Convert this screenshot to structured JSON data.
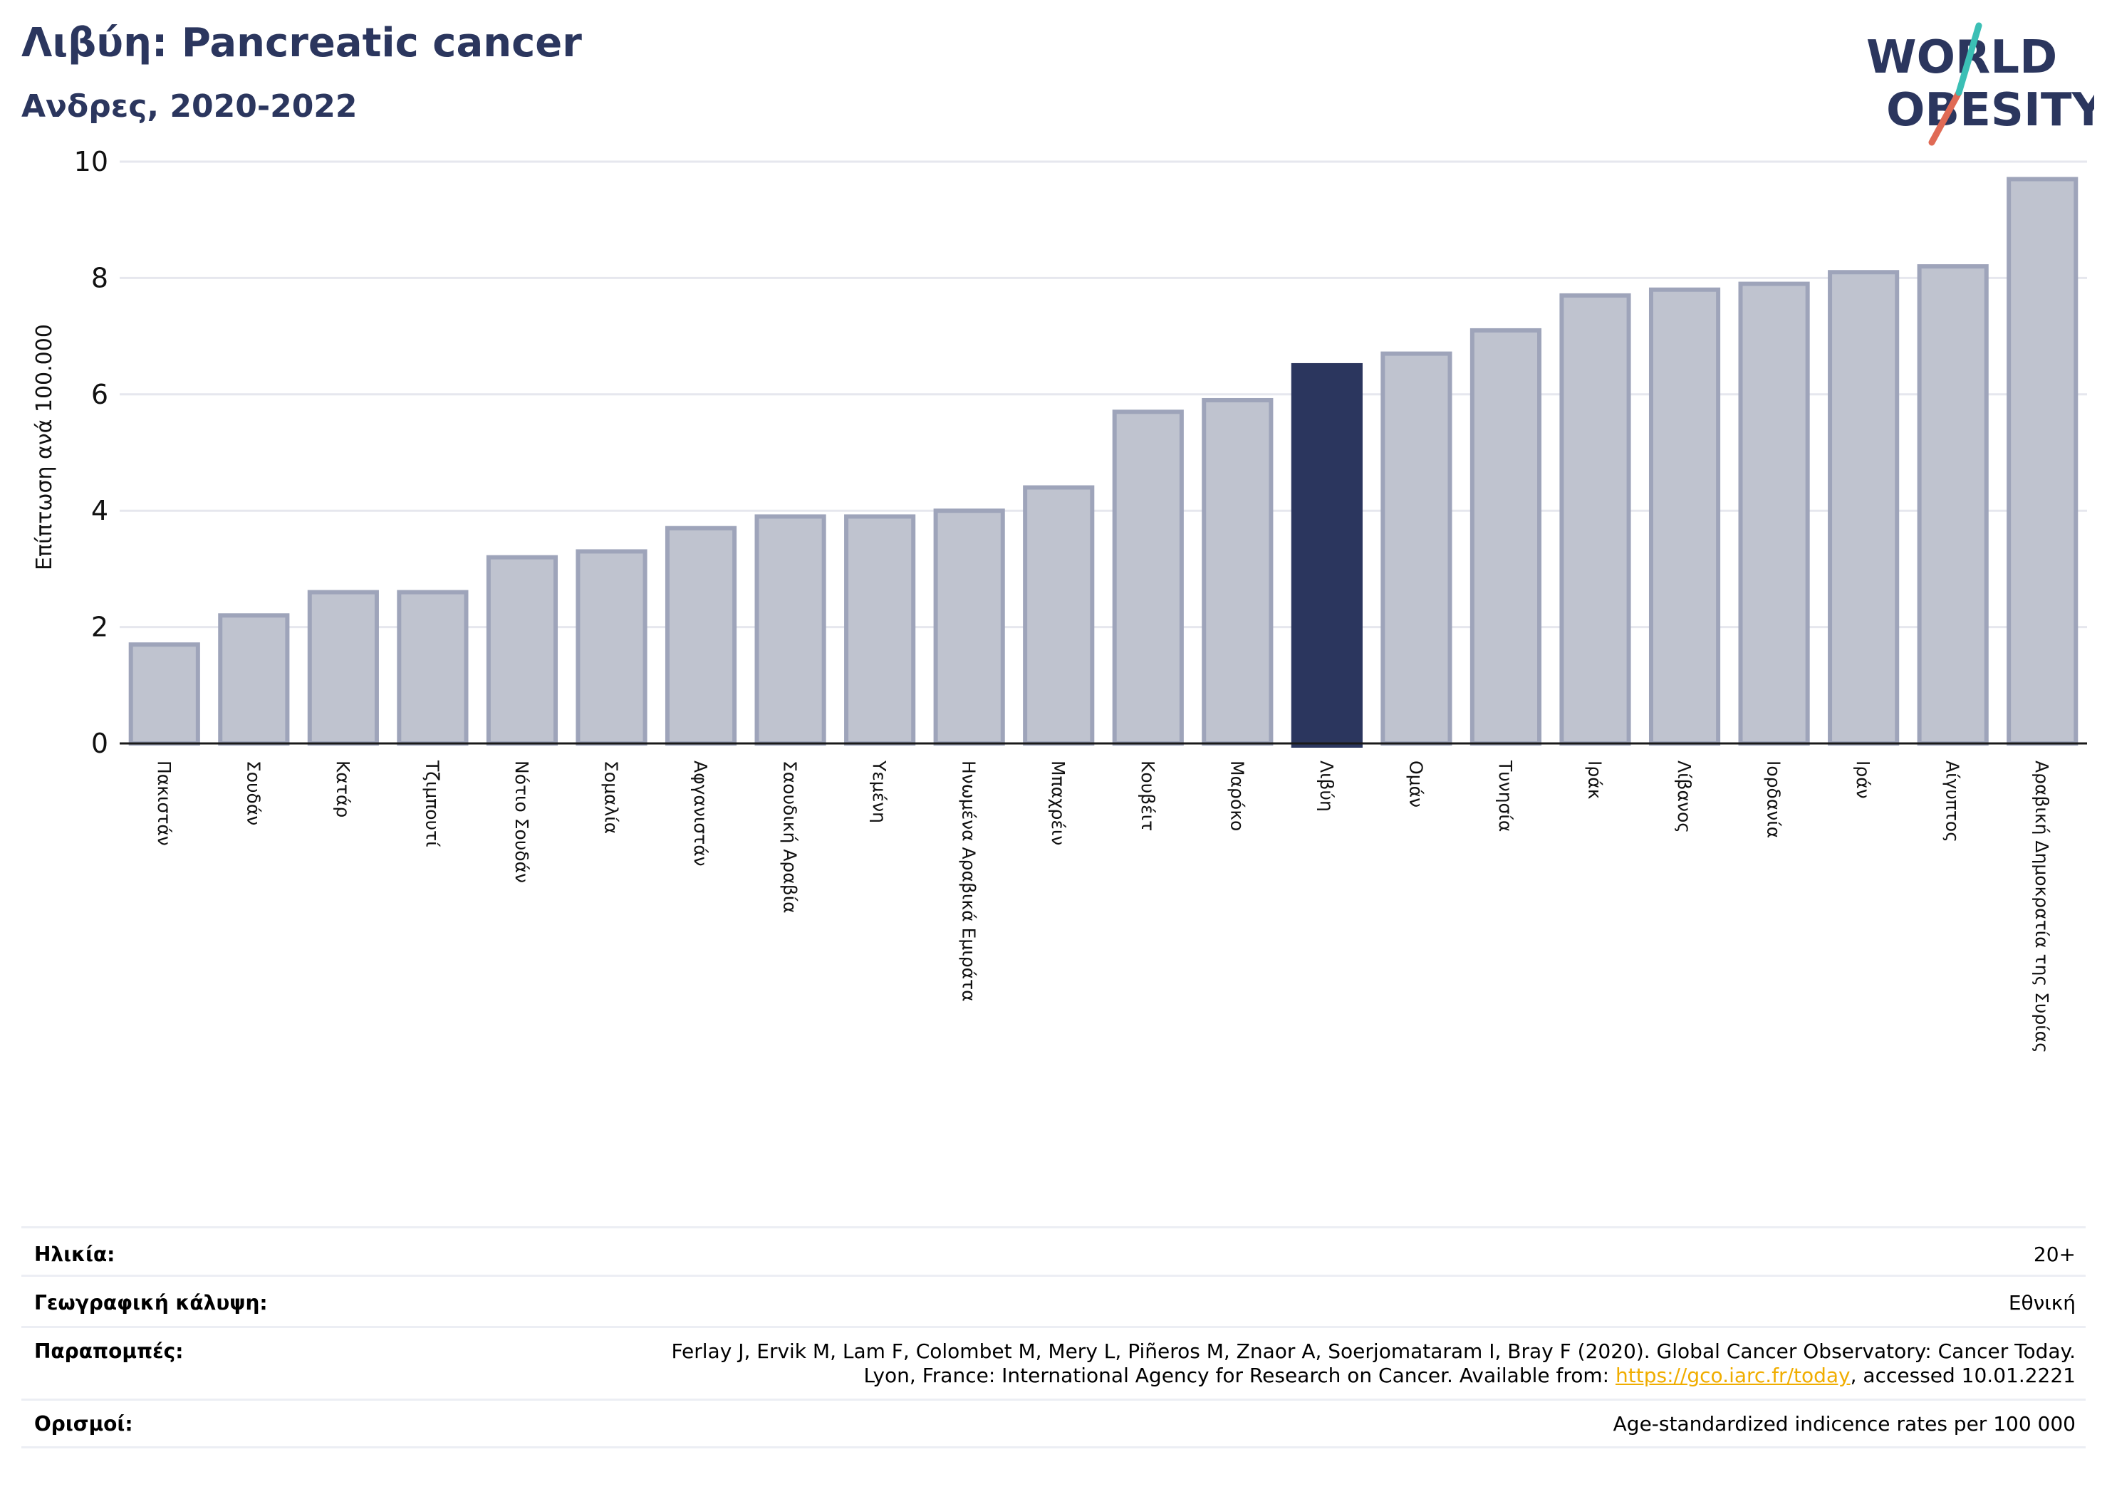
{
  "title": "Λιβύη: Pancreatic cancer",
  "subtitle": "Ανδρες, 2020-2022",
  "logo": {
    "line1": "WORLD",
    "line2": "OBESITY"
  },
  "chart_data": {
    "type": "bar",
    "ylabel": "Επίπτωση ανά 100.000",
    "ylim": [
      0,
      10
    ],
    "yticks": [
      "0",
      "2",
      "4",
      "6",
      "8",
      "10"
    ],
    "grid": true,
    "highlight": "Λιβύη",
    "colors": {
      "bar": "#bfc3cf",
      "bar_edge": "#9ea4ba",
      "highlight": "#2b365e",
      "grid": "#e6e7ee",
      "axis": "#1a1a1a"
    },
    "categories": [
      "Πακιστάν",
      "Σουδάν",
      "Κατάρ",
      "Τζιμπουτί",
      "Νότιο Σουδάν",
      "Σομαλία",
      "Αφγανιστάν",
      "Σαουδική Αραβία",
      "Υεμένη",
      "Ηνωμένα Αραβικά Εμιράτα",
      "Μπαχρέιν",
      "Κουβέιτ",
      "Μαρόκο",
      "Λιβύη",
      "Ομάν",
      "Τυνησία",
      "Ιράκ",
      "Λίβανος",
      "Ιορδανία",
      "Ιράν",
      "Αίγυπτος",
      "Αραβική Δημοκρατία της Συρίας"
    ],
    "values": [
      1.7,
      2.2,
      2.6,
      2.6,
      3.2,
      3.3,
      3.7,
      3.9,
      3.9,
      4.0,
      4.4,
      5.7,
      5.9,
      6.5,
      6.7,
      7.1,
      7.7,
      7.8,
      7.9,
      8.1,
      8.2,
      9.7
    ]
  },
  "info": {
    "age_label": "Ηλικία:",
    "age_value": "20+",
    "coverage_label": "Γεωγραφική κάλυψη:",
    "coverage_value": "Εθνική",
    "refs_label": "Παραπομπές:",
    "refs_line1": "Ferlay J, Ervik M, Lam F, Colombet M, Mery L, Piñeros M, Znaor A, Soerjomataram I, Bray F (2020). Global Cancer Observatory: Cancer Today.",
    "refs_line2_pre": "Lyon, France: International Agency for Research on Cancer. Available from: ",
    "refs_link": "https://gco.iarc.fr/today",
    "refs_line2_post": ", accessed 10.01.2221",
    "defs_label": "Ορισμοί:",
    "defs_value": "Age-standardized indicence rates per 100 000"
  }
}
